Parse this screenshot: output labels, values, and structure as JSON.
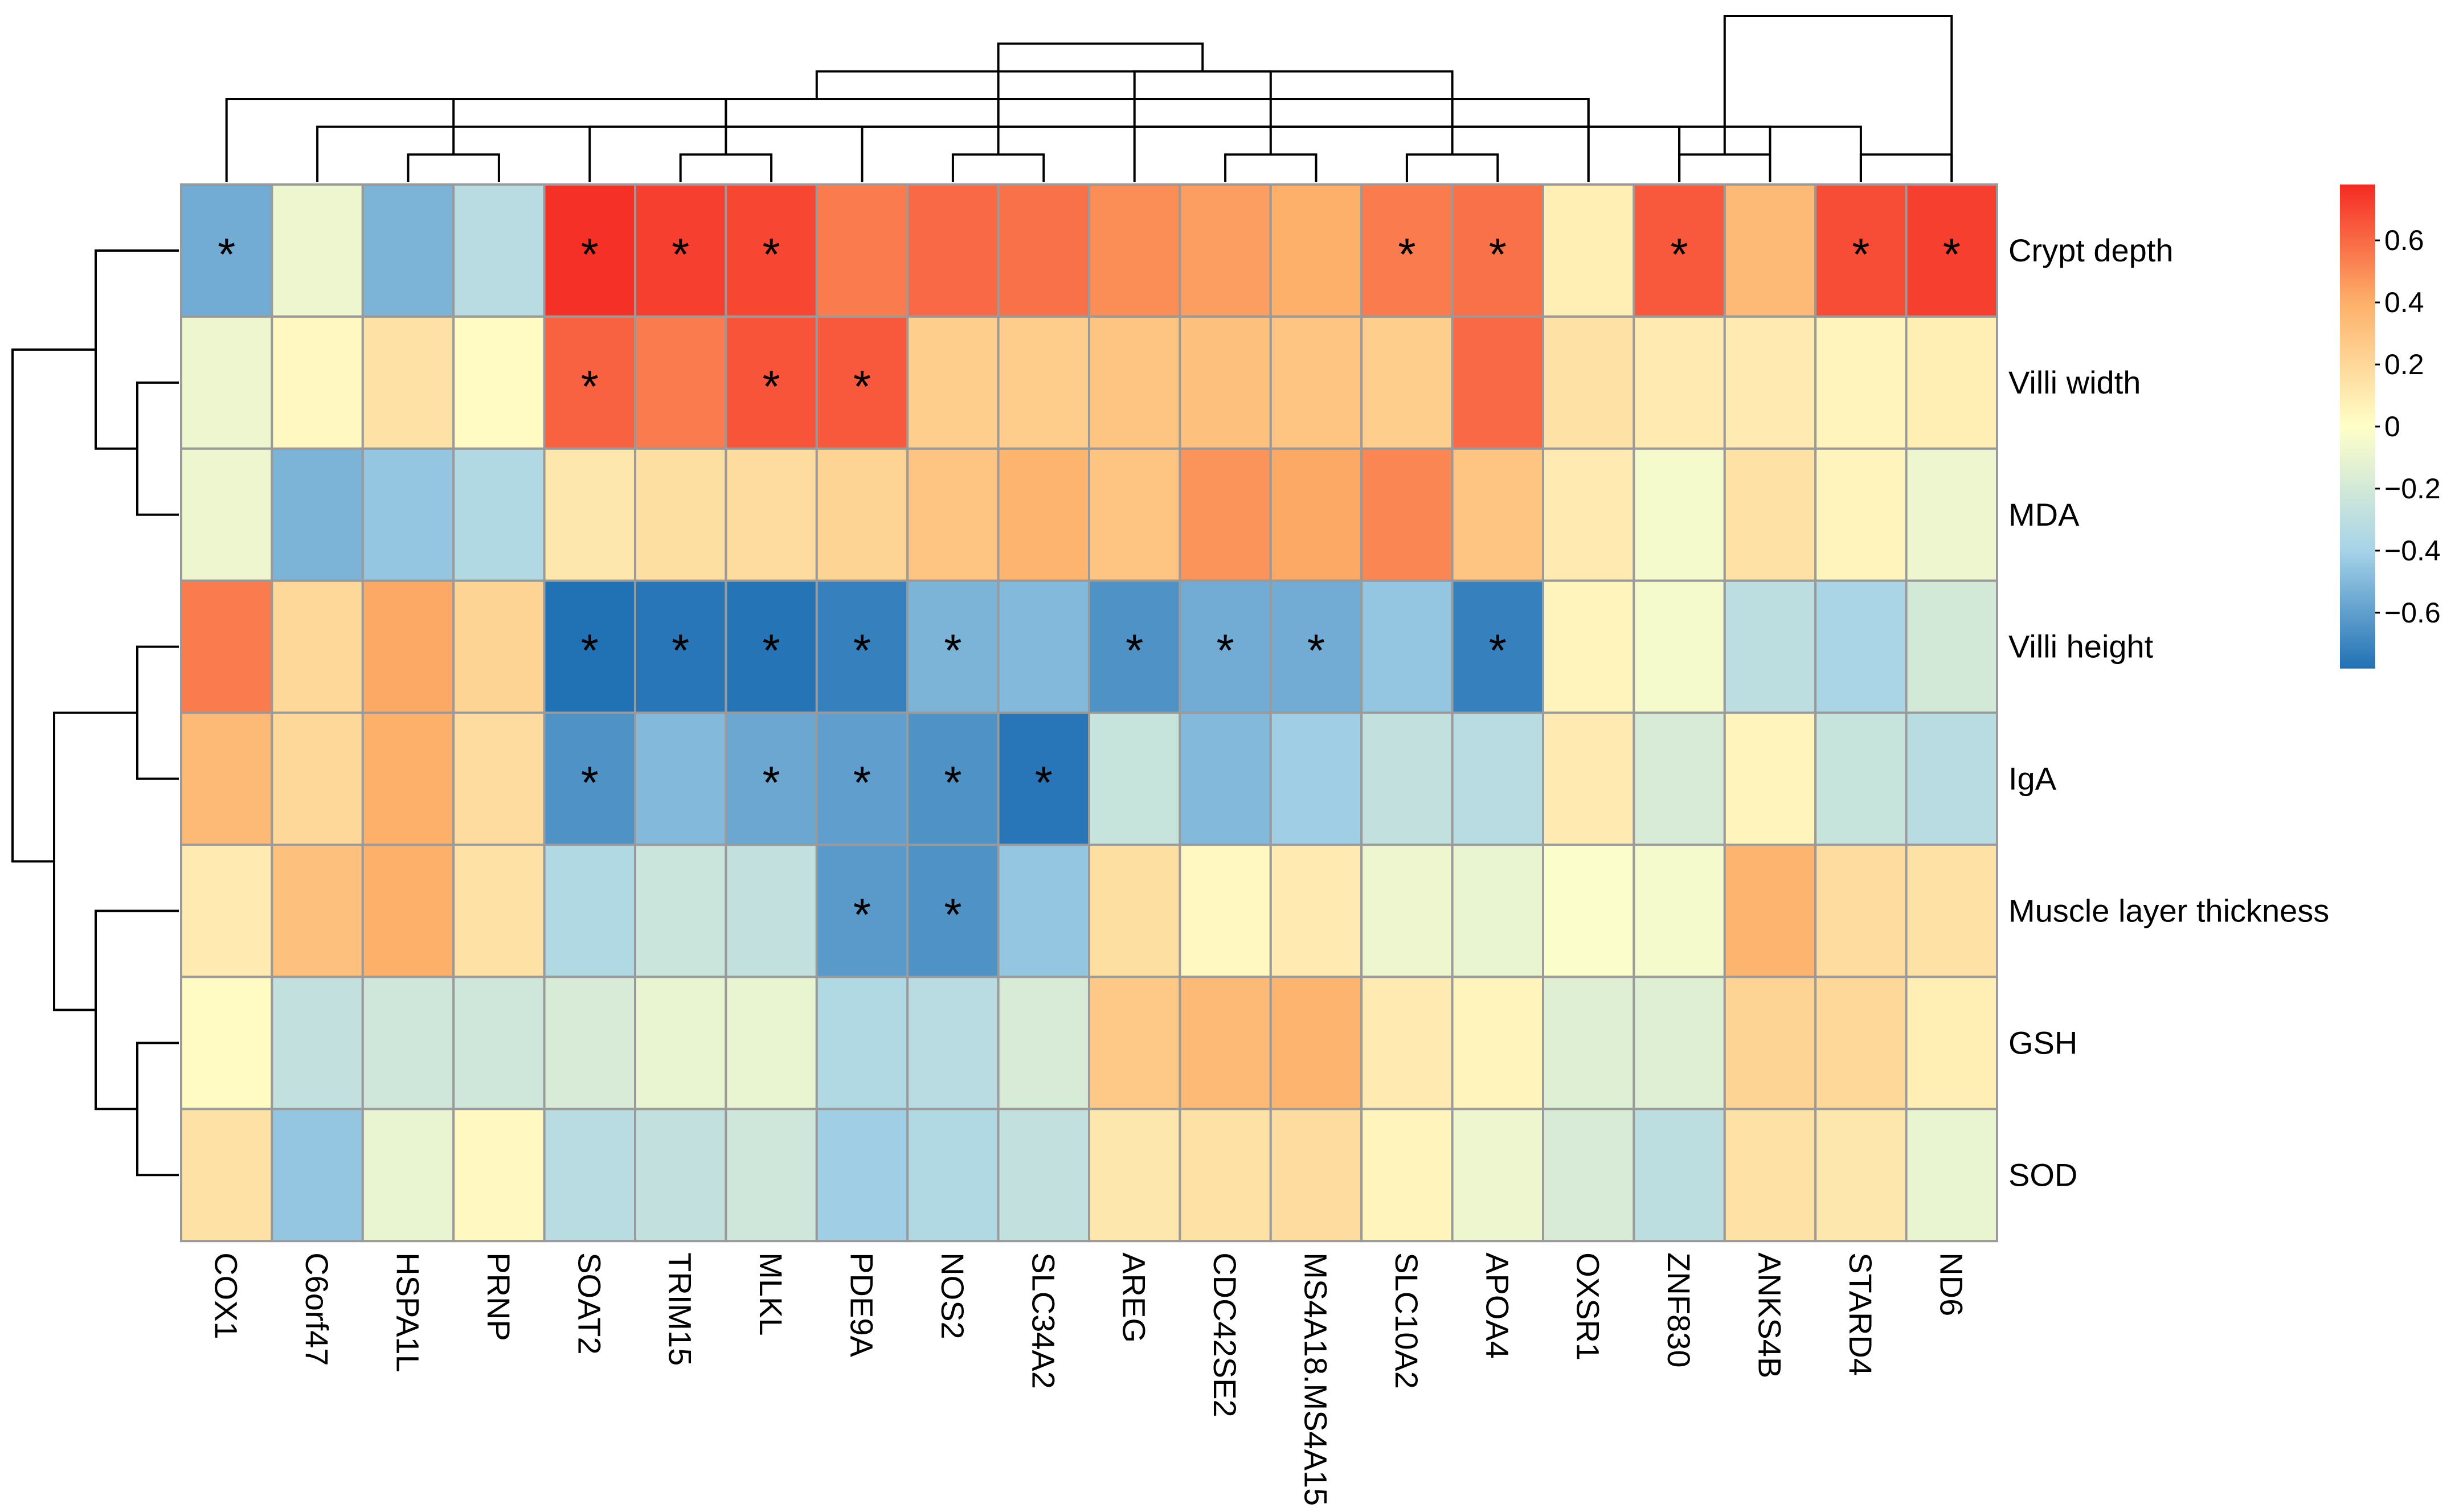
{
  "chart_data": {
    "type": "heatmap",
    "title": "",
    "rows": [
      "Crypt depth",
      "Villi width",
      "MDA",
      "Villi height",
      "IgA",
      "Muscle layer thickness",
      "GSH",
      "SOD"
    ],
    "columns": [
      "COX1",
      "C6orf47",
      "HSPA1L",
      "PRNP",
      "SOAT2",
      "TRIM15",
      "MLKL",
      "PDE9A",
      "NOS2",
      "SLC34A2",
      "AREG",
      "CDC42SE2",
      "MS4A18.MS4A15",
      "SLC10A2",
      "APOA4",
      "OXSR1",
      "ZNF830",
      "ANKS4B",
      "STARD4",
      "ND6"
    ],
    "values": [
      [
        -0.55,
        -0.08,
        -0.52,
        -0.32,
        0.76,
        0.72,
        0.7,
        0.55,
        0.6,
        0.58,
        0.5,
        0.45,
        0.4,
        0.55,
        0.58,
        0.08,
        0.65,
        0.35,
        0.68,
        0.72
      ],
      [
        -0.08,
        0.03,
        0.15,
        0.02,
        0.62,
        0.55,
        0.66,
        0.65,
        0.25,
        0.26,
        0.3,
        0.32,
        0.3,
        0.25,
        0.6,
        0.15,
        0.1,
        0.1,
        0.05,
        0.08
      ],
      [
        -0.08,
        -0.52,
        -0.45,
        -0.35,
        0.12,
        0.16,
        0.18,
        0.22,
        0.3,
        0.38,
        0.3,
        0.48,
        0.42,
        0.52,
        0.3,
        0.1,
        -0.05,
        0.15,
        0.05,
        -0.08
      ],
      [
        0.55,
        0.2,
        0.42,
        0.22,
        -0.78,
        -0.76,
        -0.77,
        -0.72,
        -0.52,
        -0.5,
        -0.65,
        -0.55,
        -0.55,
        -0.45,
        -0.72,
        0.05,
        -0.05,
        -0.3,
        -0.38,
        -0.2
      ],
      [
        0.35,
        0.2,
        0.4,
        0.18,
        -0.65,
        -0.5,
        -0.57,
        -0.6,
        -0.65,
        -0.76,
        -0.25,
        -0.5,
        -0.42,
        -0.28,
        -0.32,
        0.1,
        -0.18,
        0.05,
        -0.25,
        -0.32
      ],
      [
        0.1,
        0.32,
        0.4,
        0.15,
        -0.35,
        -0.24,
        -0.28,
        -0.62,
        -0.65,
        -0.45,
        0.16,
        0.03,
        0.1,
        -0.08,
        -0.1,
        -0.02,
        -0.05,
        0.38,
        0.18,
        0.15
      ],
      [
        0.02,
        -0.28,
        -0.22,
        -0.22,
        -0.18,
        -0.1,
        -0.1,
        -0.35,
        -0.32,
        -0.18,
        0.28,
        0.35,
        0.38,
        0.1,
        0.05,
        -0.15,
        -0.15,
        0.22,
        0.2,
        0.08
      ],
      [
        0.15,
        -0.45,
        -0.1,
        0.03,
        -0.32,
        -0.28,
        -0.22,
        -0.42,
        -0.35,
        -0.28,
        0.12,
        0.15,
        0.18,
        0.05,
        -0.08,
        -0.18,
        -0.3,
        0.15,
        0.12,
        -0.1
      ]
    ],
    "significant": [
      [
        0,
        0
      ],
      [
        0,
        4
      ],
      [
        0,
        5
      ],
      [
        0,
        6
      ],
      [
        0,
        13
      ],
      [
        0,
        14
      ],
      [
        0,
        16
      ],
      [
        0,
        18
      ],
      [
        0,
        19
      ],
      [
        1,
        4
      ],
      [
        1,
        6
      ],
      [
        1,
        7
      ],
      [
        3,
        4
      ],
      [
        3,
        5
      ],
      [
        3,
        6
      ],
      [
        3,
        7
      ],
      [
        3,
        8
      ],
      [
        3,
        10
      ],
      [
        3,
        11
      ],
      [
        3,
        12
      ],
      [
        3,
        14
      ],
      [
        4,
        4
      ],
      [
        4,
        6
      ],
      [
        4,
        7
      ],
      [
        4,
        8
      ],
      [
        4,
        9
      ],
      [
        5,
        7
      ],
      [
        5,
        8
      ]
    ],
    "significance_marker": "*",
    "color_scale": {
      "stops": [
        -0.78,
        -0.4,
        0,
        0.4,
        0.78
      ],
      "colors": [
        "#2171b5",
        "#a6d3e8",
        "#ffffc8",
        "#fdb06a",
        "#f52a23"
      ]
    },
    "legend": {
      "ticks": [
        0.6,
        0.4,
        0.2,
        0,
        -0.2,
        -0.4,
        -0.6
      ],
      "tick_labels": [
        "0.6",
        "0.4",
        "0.2",
        "0",
        "−0.2",
        "−0.4",
        "−0.6"
      ],
      "range": [
        -0.78,
        0.78
      ],
      "position": "right"
    },
    "column_dendrogram": {
      "merges": [
        [
          2,
          3,
          1
        ],
        [
          1,
          16,
          2
        ],
        [
          0,
          15,
          3
        ],
        [
          5,
          6,
          1
        ],
        [
          11,
          12,
          1
        ],
        [
          16,
          4,
          2
        ],
        [
          10,
          17,
          2
        ],
        [
          8,
          9,
          1
        ],
        [
          18,
          7,
          2
        ],
        [
          20,
          21,
          3
        ],
        [
          13,
          14,
          1
        ],
        [
          23,
          22,
          3
        ],
        [
          24,
          25,
          4
        ],
        [
          16,
          17,
          1
        ],
        [
          18,
          19,
          1
        ],
        [
          28,
          29,
          2
        ],
        [
          15,
          30,
          3
        ],
        [
          26,
          31,
          4
        ],
        [
          27,
          32,
          5
        ],
        [
          19,
          33,
          6
        ]
      ]
    },
    "row_dendrogram": {
      "merges": [
        [
          1,
          2,
          1
        ],
        [
          0,
          8,
          2
        ],
        [
          3,
          4,
          1
        ],
        [
          6,
          7,
          1
        ],
        [
          5,
          11,
          2
        ],
        [
          10,
          12,
          3
        ],
        [
          9,
          13,
          4
        ]
      ]
    }
  }
}
